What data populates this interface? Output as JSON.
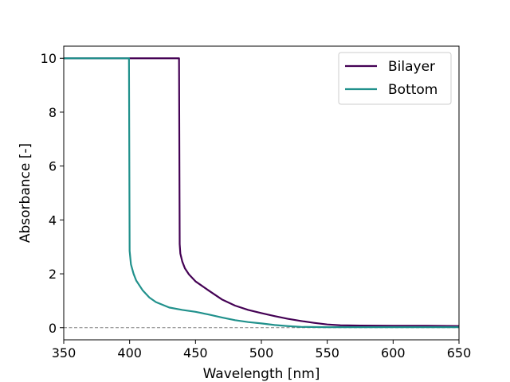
{
  "chart_data": {
    "type": "line",
    "title": "",
    "xlabel": "Wavelength [nm]",
    "ylabel": "Absorbance [-]",
    "xlim": [
      350,
      650
    ],
    "ylim": [
      -0.45,
      10.45
    ],
    "xticks": [
      350,
      400,
      450,
      500,
      550,
      600,
      650
    ],
    "yticks": [
      0,
      2,
      4,
      6,
      8,
      10
    ],
    "grid": false,
    "legend_position": "top-right",
    "reference_line": {
      "y": 0,
      "style": "dashed",
      "color": "#808080"
    },
    "series": [
      {
        "name": "Bilayer",
        "color": "#440154",
        "x": [
          350,
          400,
          437.5,
          438,
          438.5,
          440,
          442,
          445,
          450,
          460,
          470,
          480,
          490,
          500,
          510,
          520,
          530,
          540,
          550,
          560,
          575,
          600,
          625,
          650
        ],
        "y": [
          10,
          10,
          10,
          3.1,
          2.75,
          2.45,
          2.2,
          1.98,
          1.72,
          1.38,
          1.05,
          0.82,
          0.66,
          0.54,
          0.43,
          0.33,
          0.25,
          0.18,
          0.12,
          0.09,
          0.08,
          0.07,
          0.07,
          0.06
        ]
      },
      {
        "name": "Bottom",
        "color": "#21918c",
        "x": [
          350,
          399.5,
          400,
          401,
          403,
          405,
          410,
          415,
          420,
          430,
          440,
          450,
          460,
          470,
          480,
          490,
          500,
          510,
          520,
          530,
          550,
          575,
          600,
          650
        ],
        "y": [
          10,
          10,
          2.85,
          2.35,
          2.0,
          1.75,
          1.38,
          1.12,
          0.95,
          0.75,
          0.66,
          0.59,
          0.49,
          0.38,
          0.28,
          0.21,
          0.16,
          0.1,
          0.06,
          0.03,
          0.02,
          0.02,
          0.02,
          0.02
        ]
      }
    ]
  }
}
